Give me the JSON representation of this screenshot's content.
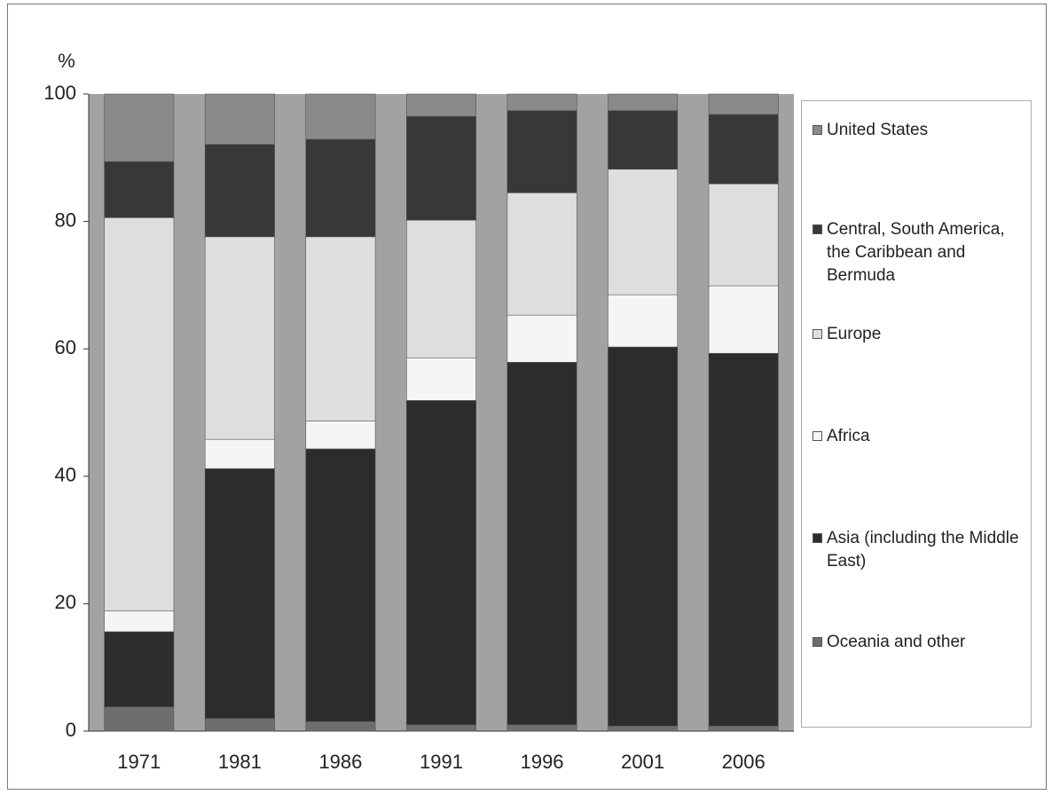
{
  "chart_data": {
    "type": "bar",
    "stacked": true,
    "y_label": "%",
    "categories": [
      "1971",
      "1981",
      "1986",
      "1991",
      "1996",
      "2001",
      "2006"
    ],
    "series": [
      {
        "name": "Oceania and other",
        "color": "#6e6e6e",
        "values": [
          3.8,
          2.0,
          1.5,
          1.0,
          1.0,
          0.8,
          0.8
        ]
      },
      {
        "name": "Asia (including the Middle East)",
        "color": "#2c2c2c",
        "values": [
          11.8,
          39.2,
          42.8,
          50.9,
          56.9,
          59.5,
          58.5
        ]
      },
      {
        "name": "Africa",
        "color": "#f5f5f5",
        "values": [
          3.3,
          4.6,
          4.4,
          6.7,
          7.4,
          8.2,
          10.6
        ]
      },
      {
        "name": "Europe",
        "color": "#dedede",
        "values": [
          61.7,
          31.8,
          28.9,
          21.6,
          19.2,
          19.7,
          16.0
        ]
      },
      {
        "name": "Central, South America, the Caribbean and Bermuda",
        "color": "#383838",
        "values": [
          8.8,
          14.5,
          15.3,
          16.3,
          12.9,
          9.2,
          10.9
        ]
      },
      {
        "name": "United States",
        "color": "#8a8a8a",
        "values": [
          10.6,
          7.9,
          7.1,
          3.5,
          2.6,
          2.6,
          3.2
        ]
      }
    ],
    "ylim": [
      0,
      100
    ],
    "yticks": [
      0,
      20,
      40,
      60,
      80,
      100
    ],
    "grid": false,
    "plot_background": "#a2a2a2",
    "legend": "right"
  }
}
